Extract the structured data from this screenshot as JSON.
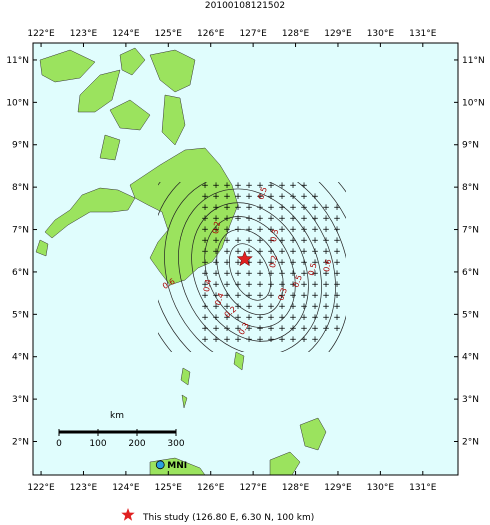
{
  "map": {
    "title": "20100108121502",
    "xlim": [
      121.81,
      131.83
    ],
    "ylim": [
      1.21,
      11.4
    ],
    "xticks": [
      {
        "value": 122,
        "label": "122°E"
      },
      {
        "value": 123,
        "label": "123°E"
      },
      {
        "value": 124,
        "label": "124°E"
      },
      {
        "value": 125,
        "label": "125°E"
      },
      {
        "value": 126,
        "label": "126°E"
      },
      {
        "value": 127,
        "label": "127°E"
      },
      {
        "value": 128,
        "label": "128°E"
      },
      {
        "value": 129,
        "label": "129°E"
      },
      {
        "value": 130,
        "label": "130°E"
      },
      {
        "value": 131,
        "label": "131°E"
      }
    ],
    "yticks": [
      {
        "value": 2,
        "label": "2°N"
      },
      {
        "value": 3,
        "label": "3°N"
      },
      {
        "value": 4,
        "label": "4°N"
      },
      {
        "value": 5,
        "label": "5°N"
      },
      {
        "value": 6,
        "label": "6°N"
      },
      {
        "value": 7,
        "label": "7°N"
      },
      {
        "value": 8,
        "label": "8°N"
      },
      {
        "value": 9,
        "label": "9°N"
      },
      {
        "value": 10,
        "label": "10°N"
      },
      {
        "value": 11,
        "label": "11°N"
      }
    ],
    "epicenter": {
      "lon": 126.8,
      "lat": 6.3,
      "color": "#e02020"
    },
    "station": {
      "name": "MNI",
      "lon": 124.81,
      "lat": 1.45,
      "color": "#2aa0e0"
    },
    "scale_bar": {
      "unit": "km",
      "ticks": [
        0,
        100,
        200,
        300
      ]
    },
    "contour_labels": [
      "0.5",
      "0.2",
      "0.3",
      "0.2",
      "0.3",
      "0.4",
      "0.5",
      "0.6",
      "0.4",
      "0.5",
      "0.6",
      "0.2",
      "0.3"
    ],
    "legend": "This study (126.80 E, 6.30 N, 100 km)"
  }
}
